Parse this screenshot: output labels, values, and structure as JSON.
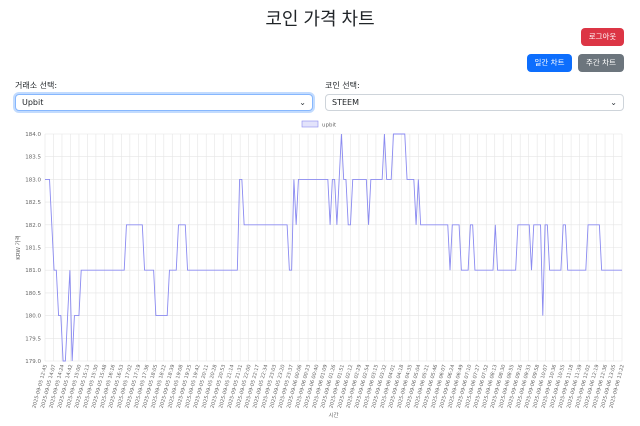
{
  "page": {
    "title": "코인 가격 차트"
  },
  "buttons": {
    "logout": "로그아웃",
    "daily": "일간 차트",
    "weekly": "주간 차트"
  },
  "filters": {
    "exchange_label": "거래소 선택:",
    "exchange_value": "Upbit",
    "coin_label": "코인 선택:",
    "coin_value": "STEEM"
  },
  "colors": {
    "line": "#8a8af0",
    "legend_fill": "#e3e3fb",
    "grid": "#e5e5e5",
    "logout": "#dc3545",
    "daily": "#0d6efd",
    "weekly": "#6c757d"
  },
  "chart_data": {
    "type": "line",
    "legend": [
      "upbit"
    ],
    "ylabel": "KRW 가격",
    "xlabel": "시간",
    "ylim": [
      179.0,
      184.0
    ],
    "yticks": [
      "179.0",
      "179.5",
      "180.0",
      "180.5",
      "181.0",
      "181.5",
      "182.0",
      "182.5",
      "183.0",
      "183.5",
      "184.0"
    ],
    "xticks": [
      "2025-09-05 12:45",
      "2025-09-05 14:07",
      "2025-09-05 14:24",
      "2025-09-05 14:42",
      "2025-09-05 15:00",
      "2025-09-05 15:13",
      "2025-09-05 15:30",
      "2025-09-05 15:48",
      "2025-09-05 16:16",
      "2025-09-05 16:53",
      "2025-09-05 17:02",
      "2025-09-05 17:19",
      "2025-09-05 17:36",
      "2025-09-05 18:05",
      "2025-09-05 18:22",
      "2025-09-05 18:39",
      "2025-09-05 19:08",
      "2025-09-05 19:25",
      "2025-09-05 19:42",
      "2025-09-05 20:11",
      "2025-09-05 20:28",
      "2025-09-05 20:53",
      "2025-09-05 21:14",
      "2025-09-05 21:31",
      "2025-09-05 22:00",
      "2025-09-05 22:17",
      "2025-09-05 22:34",
      "2025-09-05 23:03",
      "2025-09-05 23:20",
      "2025-09-05 23:37",
      "2025-09-06 00:06",
      "2025-09-06 00:23",
      "2025-09-06 00:40",
      "2025-09-06 01:09",
      "2025-09-06 01:26",
      "2025-09-06 01:51",
      "2025-09-06 02:12",
      "2025-09-06 02:29",
      "2025-09-06 02:54",
      "2025-09-06 03:15",
      "2025-09-06 03:32",
      "2025-09-06 04:01",
      "2025-09-06 04:18",
      "2025-09-06 04:35",
      "2025-09-06 05:04",
      "2025-09-06 05:21",
      "2025-09-06 05:46",
      "2025-09-06 06:07",
      "2025-09-06 06:24",
      "2025-09-06 06:49",
      "2025-09-06 07:10",
      "2025-09-06 07:27",
      "2025-09-06 07:52",
      "2025-09-06 08:13",
      "2025-09-06 08:30",
      "2025-09-06 08:55",
      "2025-09-06 09:16",
      "2025-09-06 09:33",
      "2025-09-06 09:58",
      "2025-09-06 10:07",
      "2025-09-06 10:36",
      "2025-09-06 10:55",
      "2025-09-06 11:18",
      "2025-09-06 11:39",
      "2025-09-06 12:02",
      "2025-09-06 12:19",
      "2025-09-06 12:36",
      "2025-09-06 13:05",
      "2025-09-06 13:22"
    ],
    "series": [
      {
        "name": "upbit",
        "values": [
          183.0,
          183.0,
          183.0,
          182.0,
          181.0,
          181.0,
          180.0,
          180.0,
          179.0,
          179.0,
          180.0,
          181.0,
          179.0,
          180.0,
          180.0,
          180.0,
          181.0,
          181.0,
          181.0,
          181.0,
          181.0,
          181.0,
          181.0,
          181.0,
          181.0,
          181.0,
          181.0,
          181.0,
          181.0,
          181.0,
          181.0,
          181.0,
          181.0,
          181.0,
          181.0,
          181.0,
          182.0,
          182.0,
          182.0,
          182.0,
          182.0,
          182.0,
          182.0,
          182.0,
          181.0,
          181.0,
          181.0,
          181.0,
          181.0,
          180.0,
          180.0,
          180.0,
          180.0,
          180.0,
          180.0,
          181.0,
          181.0,
          181.0,
          181.0,
          182.0,
          182.0,
          182.0,
          182.0,
          181.0,
          181.0,
          181.0,
          181.0,
          181.0,
          181.0,
          181.0,
          181.0,
          181.0,
          181.0,
          181.0,
          181.0,
          181.0,
          181.0,
          181.0,
          181.0,
          181.0,
          181.0,
          181.0,
          181.0,
          181.0,
          181.0,
          181.0,
          183.0,
          183.0,
          182.0,
          182.0,
          182.0,
          182.0,
          182.0,
          182.0,
          182.0,
          182.0,
          182.0,
          182.0,
          182.0,
          182.0,
          182.0,
          182.0,
          182.0,
          182.0,
          182.0,
          182.0,
          182.0,
          182.0,
          181.0,
          181.0,
          183.0,
          182.0,
          183.0,
          183.0,
          183.0,
          183.0,
          183.0,
          183.0,
          183.0,
          183.0,
          183.0,
          183.0,
          183.0,
          183.0,
          183.0,
          183.0,
          182.0,
          183.0,
          183.0,
          182.0,
          183.0,
          184.0,
          183.0,
          183.0,
          182.0,
          182.0,
          183.0,
          183.0,
          183.0,
          183.0,
          183.0,
          183.0,
          183.0,
          182.0,
          183.0,
          183.0,
          183.0,
          183.0,
          183.0,
          183.0,
          184.0,
          183.0,
          183.0,
          183.0,
          184.0,
          184.0,
          184.0,
          184.0,
          184.0,
          184.0,
          183.0,
          183.0,
          183.0,
          183.0,
          182.0,
          183.0,
          182.0,
          182.0,
          182.0,
          182.0,
          182.0,
          182.0,
          182.0,
          182.0,
          182.0,
          182.0,
          182.0,
          182.0,
          182.0,
          181.0,
          182.0,
          182.0,
          182.0,
          182.0,
          181.0,
          181.0,
          181.0,
          181.0,
          182.0,
          182.0,
          181.0,
          181.0,
          181.0,
          181.0,
          181.0,
          181.0,
          181.0,
          181.0,
          181.0,
          182.0,
          181.0,
          181.0,
          181.0,
          181.0,
          181.0,
          181.0,
          181.0,
          181.0,
          181.0,
          182.0,
          182.0,
          182.0,
          182.0,
          182.0,
          182.0,
          181.0,
          182.0,
          182.0,
          182.0,
          182.0,
          180.0,
          182.0,
          182.0,
          181.0,
          181.0,
          181.0,
          181.0,
          181.0,
          181.0,
          182.0,
          182.0,
          181.0,
          181.0,
          181.0,
          181.0,
          181.0,
          181.0,
          181.0,
          181.0,
          181.0,
          182.0,
          182.0,
          182.0,
          182.0,
          182.0,
          182.0,
          181.0,
          181.0,
          181.0,
          181.0,
          181.0,
          181.0,
          181.0,
          181.0,
          181.0,
          181.0
        ]
      }
    ]
  }
}
